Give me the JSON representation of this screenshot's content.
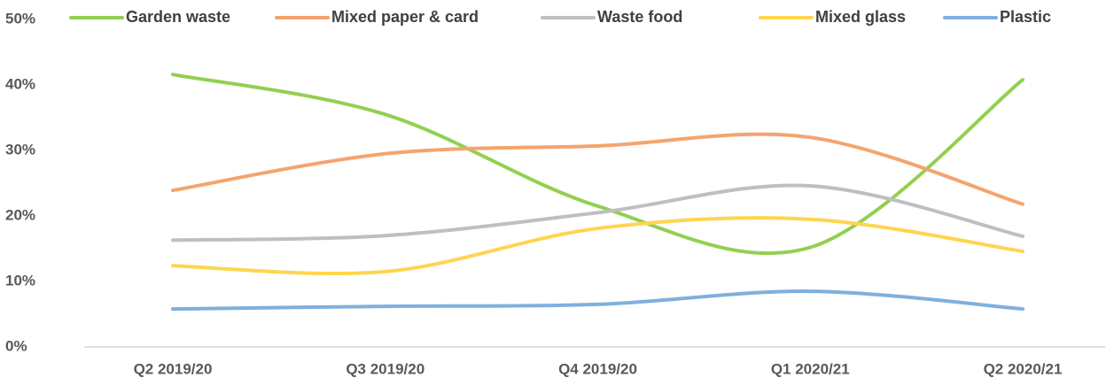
{
  "chart_data": {
    "type": "line",
    "categories": [
      "Q2 2019/20",
      "Q3 2019/20",
      "Q4 2019/20",
      "Q1 2020/21",
      "Q2 2020/21"
    ],
    "series": [
      {
        "name": "Garden waste",
        "color": "#92d050",
        "values": [
          41.6,
          35.5,
          21.5,
          15.2,
          40.8
        ]
      },
      {
        "name": "Mixed paper & card",
        "color": "#f4a46e",
        "values": [
          23.9,
          29.5,
          30.7,
          32.0,
          21.8
        ]
      },
      {
        "name": "Waste food",
        "color": "#bfbfbf",
        "values": [
          16.3,
          17.0,
          20.5,
          24.6,
          16.9
        ]
      },
      {
        "name": "Mixed glass",
        "color": "#ffd54f",
        "values": [
          12.4,
          11.5,
          18.1,
          19.5,
          14.6
        ]
      },
      {
        "name": "Plastic",
        "color": "#7fb0de",
        "values": [
          5.8,
          6.2,
          6.5,
          8.5,
          5.8
        ]
      }
    ],
    "ylim": [
      0,
      50
    ],
    "yticks": [
      {
        "value": 0,
        "label": "0%"
      },
      {
        "value": 10,
        "label": "10%"
      },
      {
        "value": 20,
        "label": "20%"
      },
      {
        "value": 30,
        "label": "30%"
      },
      {
        "value": 40,
        "label": "40%"
      },
      {
        "value": 50,
        "label": "50%"
      }
    ],
    "grid": false,
    "legend": "top"
  }
}
